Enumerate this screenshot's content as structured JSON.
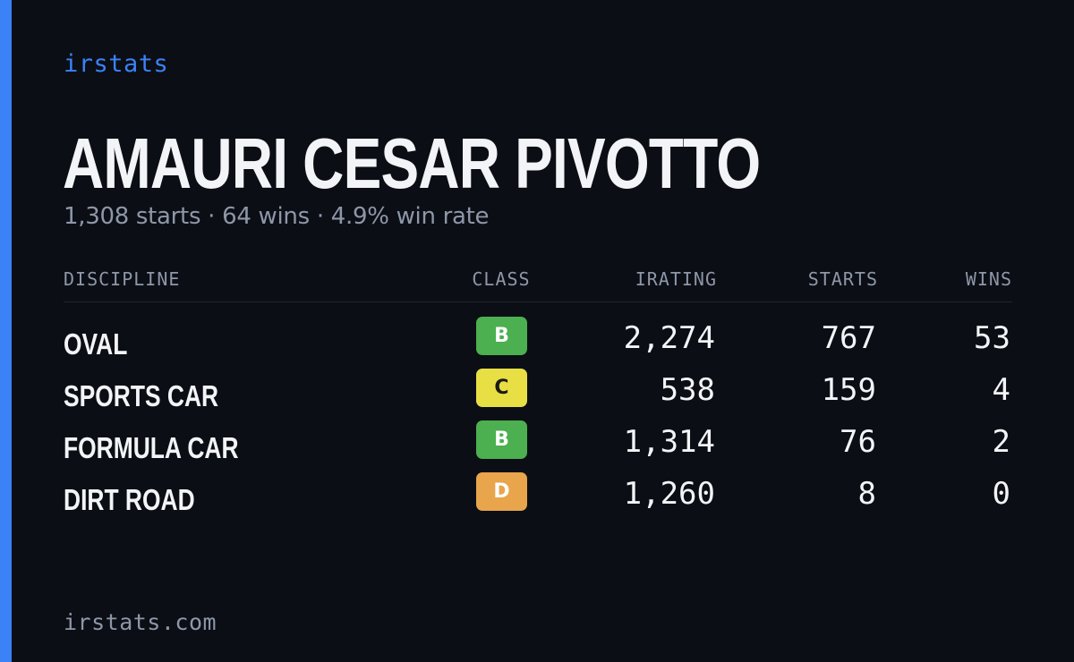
{
  "brand": "irstats",
  "driver": {
    "name": "AMAURI CESAR PIVOTTO",
    "summary": "1,308 starts · 64 wins · 4.9% win rate"
  },
  "table": {
    "headers": {
      "discipline": "DISCIPLINE",
      "class": "CLASS",
      "irating": "IRATING",
      "starts": "STARTS",
      "wins": "WINS"
    },
    "rows": [
      {
        "discipline": "OVAL",
        "class": "B",
        "irating": "2,274",
        "starts": "767",
        "wins": "53"
      },
      {
        "discipline": "SPORTS CAR",
        "class": "C",
        "irating": "538",
        "starts": "159",
        "wins": "4"
      },
      {
        "discipline": "FORMULA CAR",
        "class": "B",
        "irating": "1,314",
        "starts": "76",
        "wins": "2"
      },
      {
        "discipline": "DIRT ROAD",
        "class": "D",
        "irating": "1,260",
        "starts": "8",
        "wins": "0"
      }
    ]
  },
  "footer": "irstats.com",
  "colors": {
    "accent": "#3b82f6",
    "class_B": "#4caf50",
    "class_C": "#e8df45",
    "class_D": "#e8a54b"
  }
}
